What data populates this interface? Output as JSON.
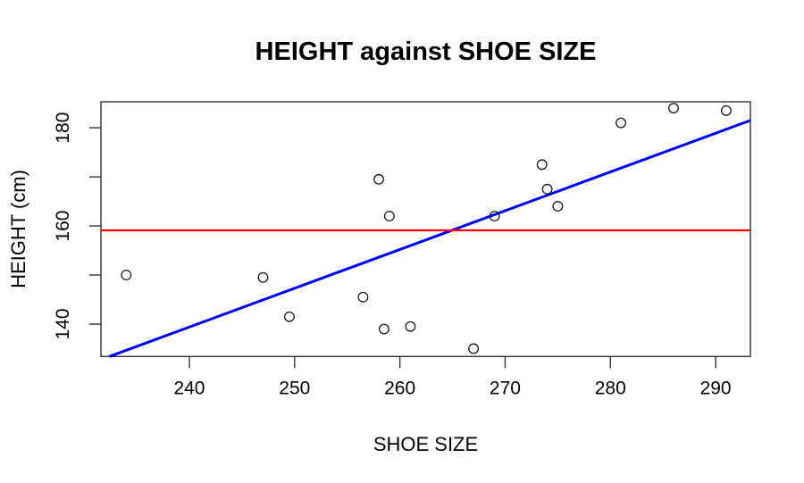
{
  "figure": {
    "background_color": "#ffffff",
    "text_color": "#000000"
  },
  "chart_data": {
    "type": "scatter",
    "title": "HEIGHT against SHOE SIZE",
    "xlabel": "SHOE SIZE",
    "ylabel": "HEIGHT (cm)",
    "xlim": [
      231.6,
      293.3
    ],
    "ylim": [
      133.4,
      185.3
    ],
    "x_ticks": [
      240,
      250,
      260,
      270,
      280,
      290
    ],
    "x_tick_labels": [
      "240",
      "250",
      "260",
      "270",
      "280",
      "290"
    ],
    "y_ticks": [
      140,
      150,
      160,
      170,
      180
    ],
    "y_tick_labels": [
      "140",
      "",
      "160",
      "",
      "180"
    ],
    "grid": false,
    "legend": null,
    "points": [
      {
        "x": 234,
        "y": 150
      },
      {
        "x": 247,
        "y": 149.5
      },
      {
        "x": 249.5,
        "y": 141.5
      },
      {
        "x": 256.5,
        "y": 145.5
      },
      {
        "x": 258,
        "y": 169.5
      },
      {
        "x": 258.5,
        "y": 139
      },
      {
        "x": 259,
        "y": 162
      },
      {
        "x": 261,
        "y": 139.5
      },
      {
        "x": 267,
        "y": 135
      },
      {
        "x": 269,
        "y": 162
      },
      {
        "x": 273.5,
        "y": 172.5
      },
      {
        "x": 274,
        "y": 167.5
      },
      {
        "x": 275,
        "y": 164
      },
      {
        "x": 281,
        "y": 181
      },
      {
        "x": 286,
        "y": 184
      },
      {
        "x": 291,
        "y": 183.5
      }
    ],
    "point_style": {
      "shape": "open-circle",
      "color": "#1a1a1a",
      "radius": 5.3
    },
    "regression_line": {
      "slope": 0.79,
      "intercept": -50.2,
      "color": "#0000ff"
    },
    "mean_line": {
      "y": 159.1,
      "color": "#ff0000"
    },
    "axis_color": "#333333"
  }
}
